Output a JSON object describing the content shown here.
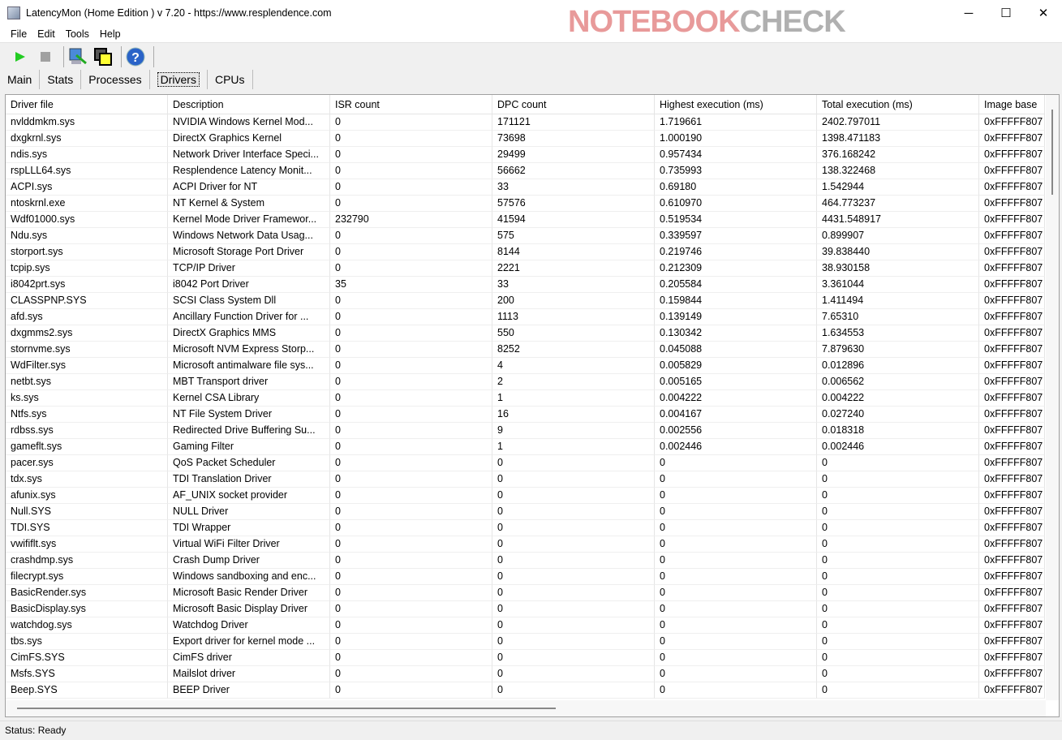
{
  "window": {
    "title": "LatencyMon  (Home Edition )  v 7.20 - https://www.resplendence.com",
    "minimize": "─",
    "maximize": "☐",
    "close": "✕"
  },
  "menu": [
    "File",
    "Edit",
    "Tools",
    "Help"
  ],
  "toolbar": {
    "icons": [
      "play-icon",
      "stop-icon",
      "monitor-icon",
      "windows-icon",
      "help-icon"
    ],
    "colors": {
      "play": "#22cc22",
      "help": "#2a63c8"
    }
  },
  "tabs": [
    {
      "label": "Main"
    },
    {
      "label": "Stats"
    },
    {
      "label": "Processes"
    },
    {
      "label": "Drivers",
      "active": true
    },
    {
      "label": "CPUs"
    }
  ],
  "table": {
    "columns": [
      "Driver file",
      "Description",
      "ISR count",
      "DPC count",
      "Highest execution (ms)",
      "Total execution (ms)",
      "Image base"
    ],
    "rows": [
      [
        "nvlddmkm.sys",
        "NVIDIA Windows Kernel Mod...",
        "0",
        "171121",
        "1.719661",
        "2402.797011",
        "0xFFFFF807"
      ],
      [
        "dxgkrnl.sys",
        "DirectX Graphics Kernel",
        "0",
        "73698",
        "1.000190",
        "1398.471183",
        "0xFFFFF807"
      ],
      [
        "ndis.sys",
        "Network Driver Interface Speci...",
        "0",
        "29499",
        "0.957434",
        "376.168242",
        "0xFFFFF807"
      ],
      [
        "rspLLL64.sys",
        "Resplendence Latency Monit...",
        "0",
        "56662",
        "0.735993",
        "138.322468",
        "0xFFFFF807"
      ],
      [
        "ACPI.sys",
        "ACPI Driver for NT",
        "0",
        "33",
        "0.69180",
        "1.542944",
        "0xFFFFF807"
      ],
      [
        "ntoskrnl.exe",
        "NT Kernel & System",
        "0",
        "57576",
        "0.610970",
        "464.773237",
        "0xFFFFF807"
      ],
      [
        "Wdf01000.sys",
        "Kernel Mode Driver Framewor...",
        "232790",
        "41594",
        "0.519534",
        "4431.548917",
        "0xFFFFF807"
      ],
      [
        "Ndu.sys",
        "Windows Network Data Usag...",
        "0",
        "575",
        "0.339597",
        "0.899907",
        "0xFFFFF807"
      ],
      [
        "storport.sys",
        "Microsoft Storage Port Driver",
        "0",
        "8144",
        "0.219746",
        "39.838440",
        "0xFFFFF807"
      ],
      [
        "tcpip.sys",
        "TCP/IP Driver",
        "0",
        "2221",
        "0.212309",
        "38.930158",
        "0xFFFFF807"
      ],
      [
        "i8042prt.sys",
        "i8042 Port Driver",
        "35",
        "33",
        "0.205584",
        "3.361044",
        "0xFFFFF807"
      ],
      [
        "CLASSPNP.SYS",
        "SCSI Class System Dll",
        "0",
        "200",
        "0.159844",
        "1.411494",
        "0xFFFFF807"
      ],
      [
        "afd.sys",
        "Ancillary Function Driver for ...",
        "0",
        "1113",
        "0.139149",
        "7.65310",
        "0xFFFFF807"
      ],
      [
        "dxgmms2.sys",
        "DirectX Graphics MMS",
        "0",
        "550",
        "0.130342",
        "1.634553",
        "0xFFFFF807"
      ],
      [
        "stornvme.sys",
        "Microsoft NVM Express Storp...",
        "0",
        "8252",
        "0.045088",
        "7.879630",
        "0xFFFFF807"
      ],
      [
        "WdFilter.sys",
        "Microsoft antimalware file sys...",
        "0",
        "4",
        "0.005829",
        "0.012896",
        "0xFFFFF807"
      ],
      [
        "netbt.sys",
        "MBT Transport driver",
        "0",
        "2",
        "0.005165",
        "0.006562",
        "0xFFFFF807"
      ],
      [
        "ks.sys",
        "Kernel CSA Library",
        "0",
        "1",
        "0.004222",
        "0.004222",
        "0xFFFFF807"
      ],
      [
        "Ntfs.sys",
        "NT File System Driver",
        "0",
        "16",
        "0.004167",
        "0.027240",
        "0xFFFFF807"
      ],
      [
        "rdbss.sys",
        "Redirected Drive Buffering Su...",
        "0",
        "9",
        "0.002556",
        "0.018318",
        "0xFFFFF807"
      ],
      [
        "gameflt.sys",
        "Gaming Filter",
        "0",
        "1",
        "0.002446",
        "0.002446",
        "0xFFFFF807"
      ],
      [
        "pacer.sys",
        "QoS Packet Scheduler",
        "0",
        "0",
        "0",
        "0",
        "0xFFFFF807"
      ],
      [
        "tdx.sys",
        "TDI Translation Driver",
        "0",
        "0",
        "0",
        "0",
        "0xFFFFF807"
      ],
      [
        "afunix.sys",
        "AF_UNIX socket provider",
        "0",
        "0",
        "0",
        "0",
        "0xFFFFF807"
      ],
      [
        "Null.SYS",
        "NULL Driver",
        "0",
        "0",
        "0",
        "0",
        "0xFFFFF807"
      ],
      [
        "TDI.SYS",
        "TDI Wrapper",
        "0",
        "0",
        "0",
        "0",
        "0xFFFFF807"
      ],
      [
        "vwififlt.sys",
        "Virtual WiFi Filter Driver",
        "0",
        "0",
        "0",
        "0",
        "0xFFFFF807"
      ],
      [
        "crashdmp.sys",
        "Crash Dump Driver",
        "0",
        "0",
        "0",
        "0",
        "0xFFFFF807"
      ],
      [
        "filecrypt.sys",
        "Windows sandboxing and enc...",
        "0",
        "0",
        "0",
        "0",
        "0xFFFFF807"
      ],
      [
        "BasicRender.sys",
        "Microsoft Basic Render Driver",
        "0",
        "0",
        "0",
        "0",
        "0xFFFFF807"
      ],
      [
        "BasicDisplay.sys",
        "Microsoft Basic Display Driver",
        "0",
        "0",
        "0",
        "0",
        "0xFFFFF807"
      ],
      [
        "watchdog.sys",
        "Watchdog Driver",
        "0",
        "0",
        "0",
        "0",
        "0xFFFFF807"
      ],
      [
        "tbs.sys",
        "Export driver for kernel mode ...",
        "0",
        "0",
        "0",
        "0",
        "0xFFFFF807"
      ],
      [
        "CimFS.SYS",
        "CimFS driver",
        "0",
        "0",
        "0",
        "0",
        "0xFFFFF807"
      ],
      [
        "Msfs.SYS",
        "Mailslot driver",
        "0",
        "0",
        "0",
        "0",
        "0xFFFFF807"
      ],
      [
        "Beep.SYS",
        "BEEP Driver",
        "0",
        "0",
        "0",
        "0",
        "0xFFFFF807"
      ]
    ]
  },
  "status": "Status: Ready",
  "watermark": {
    "part1": "NOTEBOOK",
    "part2": "CHECK"
  }
}
